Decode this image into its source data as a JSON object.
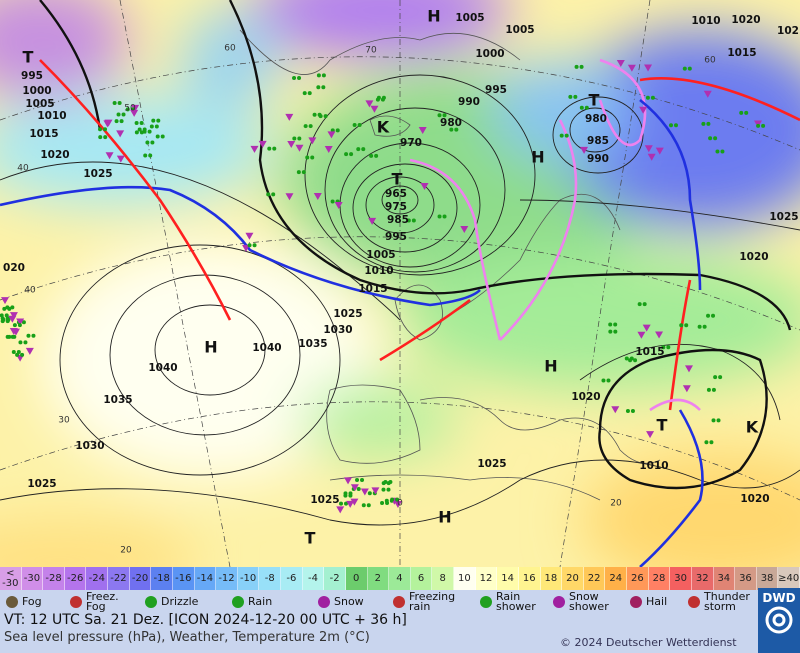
{
  "map": {
    "isobar_labels": [
      "995",
      "1000",
      "1005",
      "1010",
      "1015",
      "1020",
      "1025",
      "020",
      "1005",
      "1005",
      "1000",
      "995",
      "990",
      "980",
      "970",
      "965",
      "975",
      "985",
      "995",
      "1005",
      "1010",
      "1015",
      "1025",
      "1030",
      "1035",
      "1040",
      "1040",
      "1035",
      "1030",
      "1025",
      "980",
      "985",
      "990",
      "1010",
      "1020",
      "1015",
      "1025",
      "1020",
      "102",
      "1015",
      "1020",
      "1010",
      "1020",
      "1025",
      "1025"
    ],
    "temperature_labels": [
      "60",
      "70",
      "50",
      "40",
      "40",
      "30",
      "20",
      "0",
      "20",
      "60"
    ],
    "pressure_centers": [
      "H",
      "T",
      "T",
      "K",
      "H",
      "T",
      "H",
      "H",
      "T",
      "K",
      "H",
      "T"
    ]
  },
  "color_scale": [
    {
      "label": "<\n-30",
      "color": "#d89ee6"
    },
    {
      "label": "-30",
      "color": "#d08ee8"
    },
    {
      "label": "-28",
      "color": "#c482ea"
    },
    {
      "label": "-26",
      "color": "#b474ec"
    },
    {
      "label": "-24",
      "color": "#a070ee"
    },
    {
      "label": "-22",
      "color": "#8c78f0"
    },
    {
      "label": "-20",
      "color": "#7070f0"
    },
    {
      "label": "-18",
      "color": "#5c80f0"
    },
    {
      "label": "-16",
      "color": "#5a94f4"
    },
    {
      "label": "-14",
      "color": "#66a8f6"
    },
    {
      "label": "-12",
      "color": "#76bcf8"
    },
    {
      "label": "-10",
      "color": "#88d0f8"
    },
    {
      "label": "-8",
      "color": "#98e0f8"
    },
    {
      "label": "-6",
      "color": "#a8ecf4"
    },
    {
      "label": "-4",
      "color": "#b4f4ec"
    },
    {
      "label": "-2",
      "color": "#a4f0d0"
    },
    {
      "label": "0",
      "color": "#6ccc6c"
    },
    {
      "label": "2",
      "color": "#80dc80"
    },
    {
      "label": "4",
      "color": "#9cea98"
    },
    {
      "label": "6",
      "color": "#b4f29c"
    },
    {
      "label": "8",
      "color": "#d0f8a8"
    },
    {
      "label": "10",
      "color": "#fffff0"
    },
    {
      "label": "12",
      "color": "#ffffc8"
    },
    {
      "label": "14",
      "color": "#fffcaa"
    },
    {
      "label": "16",
      "color": "#fff490"
    },
    {
      "label": "18",
      "color": "#ffe878"
    },
    {
      "label": "20",
      "color": "#ffd868"
    },
    {
      "label": "22",
      "color": "#ffc858"
    },
    {
      "label": "24",
      "color": "#ffb048"
    },
    {
      "label": "26",
      "color": "#ff9858"
    },
    {
      "label": "28",
      "color": "#ff8064"
    },
    {
      "label": "30",
      "color": "#f46060"
    },
    {
      "label": "32",
      "color": "#e86a6a"
    },
    {
      "label": "34",
      "color": "#e08474"
    },
    {
      "label": "36",
      "color": "#d49a86"
    },
    {
      "label": "38",
      "color": "#c8a898"
    },
    {
      "label": "≥40",
      "color": "#d8c8bc"
    }
  ],
  "legend": [
    {
      "label": "Fog",
      "color": "#6a5a3a"
    },
    {
      "label": "Freez.\nFog",
      "color": "#c03030"
    },
    {
      "label": "Drizzle",
      "color": "#20a020"
    },
    {
      "label": "Rain",
      "color": "#20a020"
    },
    {
      "label": "Snow",
      "color": "#a020a0"
    },
    {
      "label": "Freezing\nrain",
      "color": "#c03030"
    },
    {
      "label": "Rain\nshower",
      "color": "#20a020"
    },
    {
      "label": "Snow\nshower",
      "color": "#a020a0"
    },
    {
      "label": "Hail",
      "color": "#a02060"
    },
    {
      "label": "Thunder\nstorm",
      "color": "#c03030"
    }
  ],
  "footer": {
    "valid_time": "VT: 12 UTC Sa.  21 Dez. [ICON 2024-12-20  00 UTC + 36 h]",
    "description": "Sea level pressure (hPa), Weather, Temperature 2m (°C)",
    "copyright": "© 2024 Deutscher Wetterdienst",
    "logo": "DWD"
  }
}
